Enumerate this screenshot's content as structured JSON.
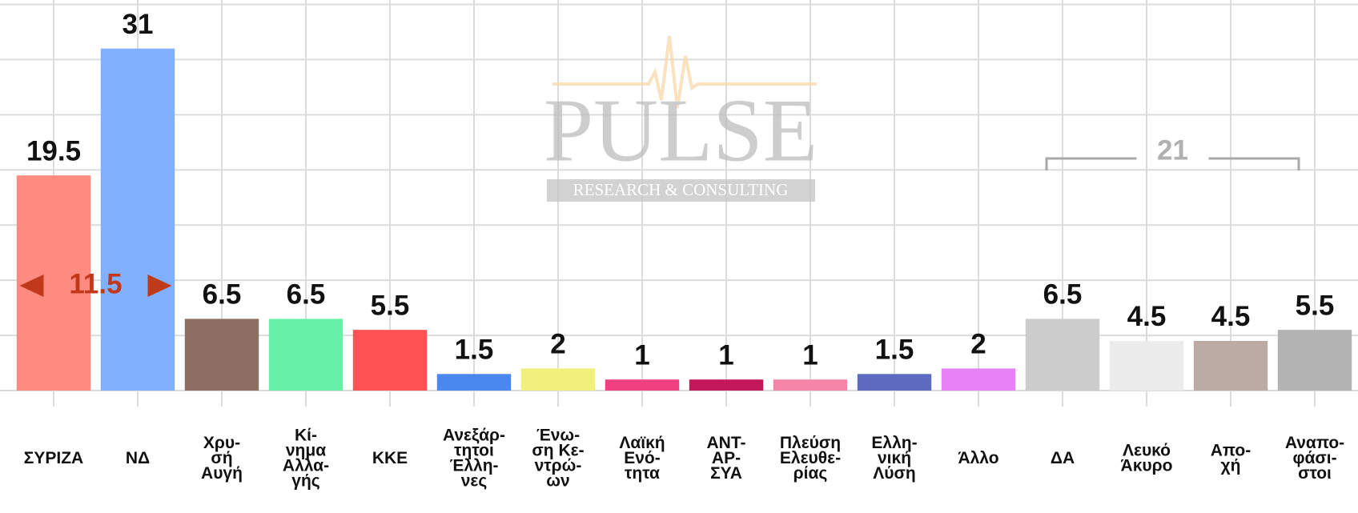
{
  "chart_data": {
    "type": "bar",
    "categories": [
      [
        "ΣΥΡΙΖΑ"
      ],
      [
        "ΝΔ"
      ],
      [
        "Χρυ-",
        "σή",
        "Αυγή"
      ],
      [
        "Κί-",
        "νημα",
        "Αλλα-",
        "γής"
      ],
      [
        "ΚΚΕ"
      ],
      [
        "Ανεξάρ-",
        "τητοι",
        "Έλλη-",
        "νες"
      ],
      [
        "Ένω-",
        "ση Κε-",
        "ντρώ-",
        "ων"
      ],
      [
        "Λαϊκή",
        "Ενό-",
        "τητα"
      ],
      [
        "ΑΝΤ-",
        "ΑΡ-",
        "ΣΥΑ"
      ],
      [
        "Πλεύση",
        "Ελευθε-",
        "ρίας"
      ],
      [
        "Ελλη-",
        "νική",
        "Λύση"
      ],
      [
        "Άλλο"
      ],
      [
        "ΔΑ"
      ],
      [
        "Λευκό",
        "Άκυρο"
      ],
      [
        "Απο-",
        "χή"
      ],
      [
        "Αναπο-",
        "φάσι-",
        "στοι"
      ]
    ],
    "values": [
      19.5,
      31,
      6.5,
      6.5,
      5.5,
      1.5,
      2,
      1,
      1,
      1,
      1.5,
      2,
      6.5,
      4.5,
      4.5,
      5.5
    ],
    "colors": [
      "#ff8a80",
      "#80b0ff",
      "#8d6e63",
      "#66f0a8",
      "#ff5252",
      "#4a88f0",
      "#f0f07a",
      "#f04080",
      "#c2185b",
      "#f484a8",
      "#5c6bc0",
      "#e880f8",
      "#cccccc",
      "#ececec",
      "#bcaaa4",
      "#b3b3b3"
    ],
    "ylim": [
      0,
      35
    ],
    "yticks": [
      0,
      5,
      10,
      15,
      20,
      25,
      30,
      35
    ],
    "grid": true,
    "annotations": [
      {
        "text": "11.5"
      },
      {
        "text": "21"
      }
    ],
    "watermark": {
      "title": "PULSE",
      "subtitle": "RESEARCH & CONSULTING"
    }
  }
}
